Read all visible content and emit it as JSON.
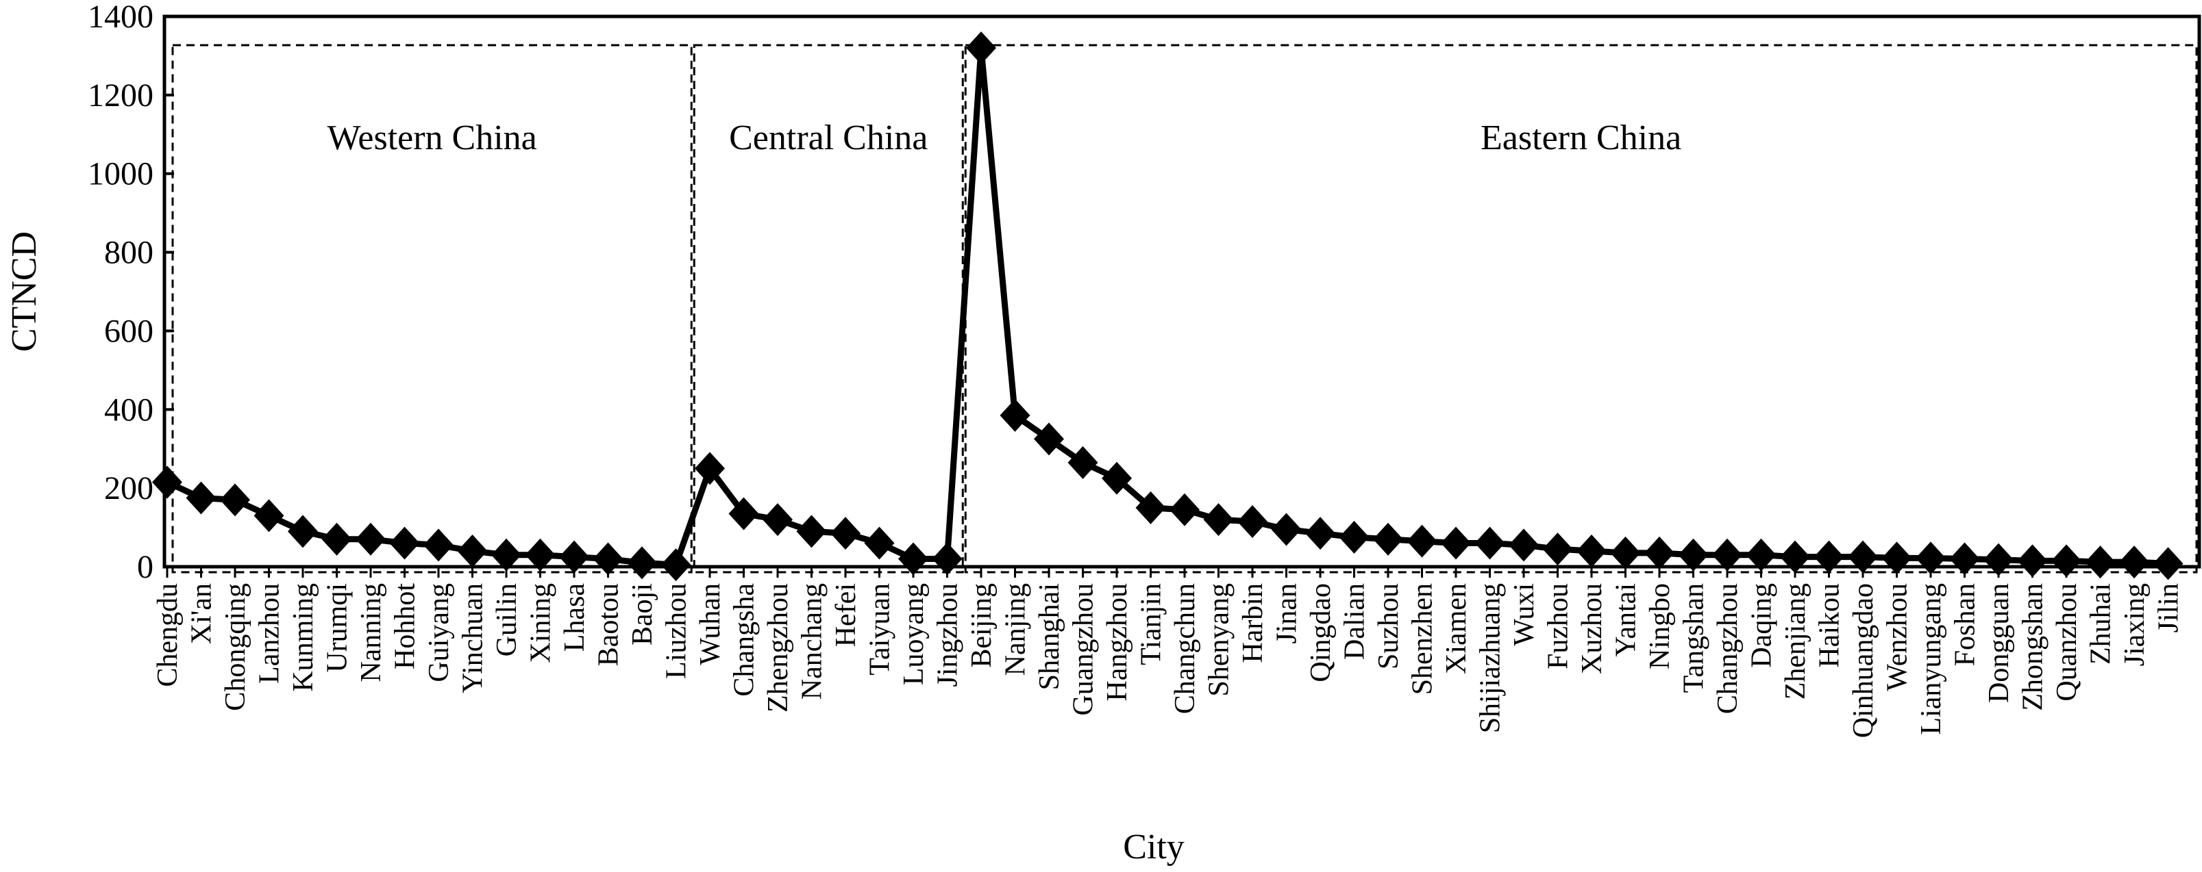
{
  "chart_data": {
    "type": "line",
    "xlabel": "City",
    "ylabel": "CTNCD",
    "ylim": [
      0,
      1400
    ],
    "yticks": [
      0,
      200,
      400,
      600,
      800,
      1000,
      1200,
      1400
    ],
    "grid": false,
    "marker": "diamond",
    "categories": [
      "Chengdu",
      "Xi'an",
      "Chongqing",
      "Lanzhou",
      "Kunming",
      "Urumqi",
      "Nanning",
      "Hohhot",
      "Guiyang",
      "Yinchuan",
      "Guilin",
      "Xining",
      "Lhasa",
      "Baotou",
      "Baoji",
      "Liuzhou",
      "Wuhan",
      "Changsha",
      "Zhengzhou",
      "Nanchang",
      "Hefei",
      "Taiyuan",
      "Luoyang",
      "Jingzhou",
      "Beijing",
      "Nanjing",
      "Shanghai",
      "Guangzhou",
      "Hangzhou",
      "Tianjin",
      "Changchun",
      "Shenyang",
      "Harbin",
      "Jinan",
      "Qingdao",
      "Dalian",
      "Suzhou",
      "Shenzhen",
      "Xiamen",
      "Shijiazhuang",
      "Wuxi",
      "Fuzhou",
      "Xuzhou",
      "Yantai",
      "Ningbo",
      "Tangshan",
      "Changzhou",
      "Daqing",
      "Zhenjiang",
      "Haikou",
      "Qinhuangdao",
      "Wenzhou",
      "Lianyungang",
      "Foshan",
      "Dongguan",
      "Zhongshan",
      "Quanzhou",
      "Zhuhai",
      "Jiaxing",
      "Jilin"
    ],
    "series": [
      {
        "values": [
          215,
          175,
          170,
          130,
          90,
          70,
          70,
          60,
          55,
          40,
          30,
          30,
          25,
          20,
          10,
          5,
          250,
          135,
          120,
          90,
          85,
          60,
          20,
          20,
          1320,
          385,
          325,
          265,
          225,
          150,
          145,
          120,
          115,
          95,
          85,
          75,
          70,
          65,
          60,
          60,
          55,
          45,
          40,
          35,
          35,
          30,
          30,
          30,
          25,
          25,
          25,
          22,
          22,
          20,
          18,
          15,
          15,
          12,
          12,
          8
        ]
      }
    ],
    "regions": [
      {
        "label": "Western China",
        "from": "Chengdu",
        "to": "Liuzhou"
      },
      {
        "label": "Central China",
        "from": "Wuhan",
        "to": "Jingzhou"
      },
      {
        "label": "Eastern China",
        "from": "Beijing",
        "to": "Jilin"
      }
    ]
  }
}
